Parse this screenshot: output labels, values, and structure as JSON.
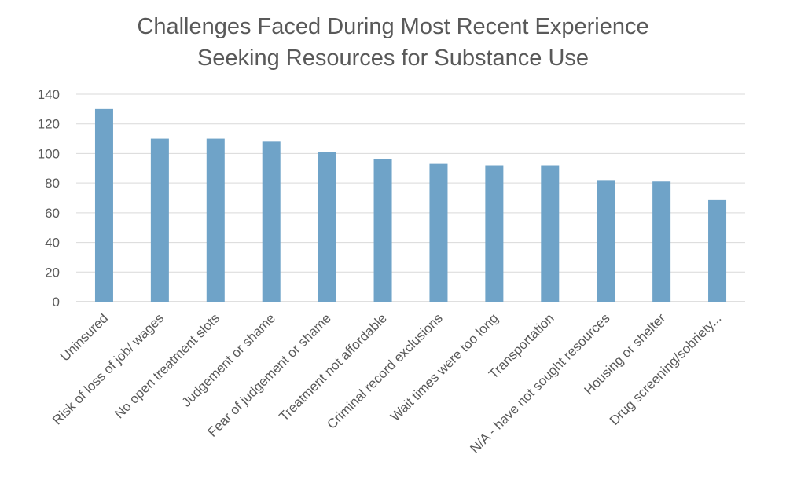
{
  "chart_data": {
    "type": "bar",
    "title_lines": [
      "Challenges Faced During Most Recent Experience",
      "Seeking Resources for Substance Use"
    ],
    "categories": [
      "Uninsured",
      "Risk of loss of job/ wages",
      "No open treatment slots",
      "Judgement or shame",
      "Fear of  judgement or shame",
      "Treatment  not affordable",
      "Criminal record exclusions",
      "Wait times were too long",
      "Transportation",
      "N/A - have not sought resources",
      "Housing or shelter",
      "Drug screening/sobriety..."
    ],
    "values": [
      130,
      110,
      110,
      108,
      101,
      96,
      93,
      92,
      92,
      82,
      81,
      69
    ],
    "yticks": [
      "0",
      "20",
      "40",
      "60",
      "80",
      "100",
      "120",
      "140"
    ],
    "ylim": [
      0,
      140
    ],
    "grid": true,
    "legend": "none",
    "colors": {
      "bar": "#6fa3c8",
      "grid": "#d9d9d9",
      "axis": "#bfbfbf",
      "text": "#595959"
    }
  }
}
